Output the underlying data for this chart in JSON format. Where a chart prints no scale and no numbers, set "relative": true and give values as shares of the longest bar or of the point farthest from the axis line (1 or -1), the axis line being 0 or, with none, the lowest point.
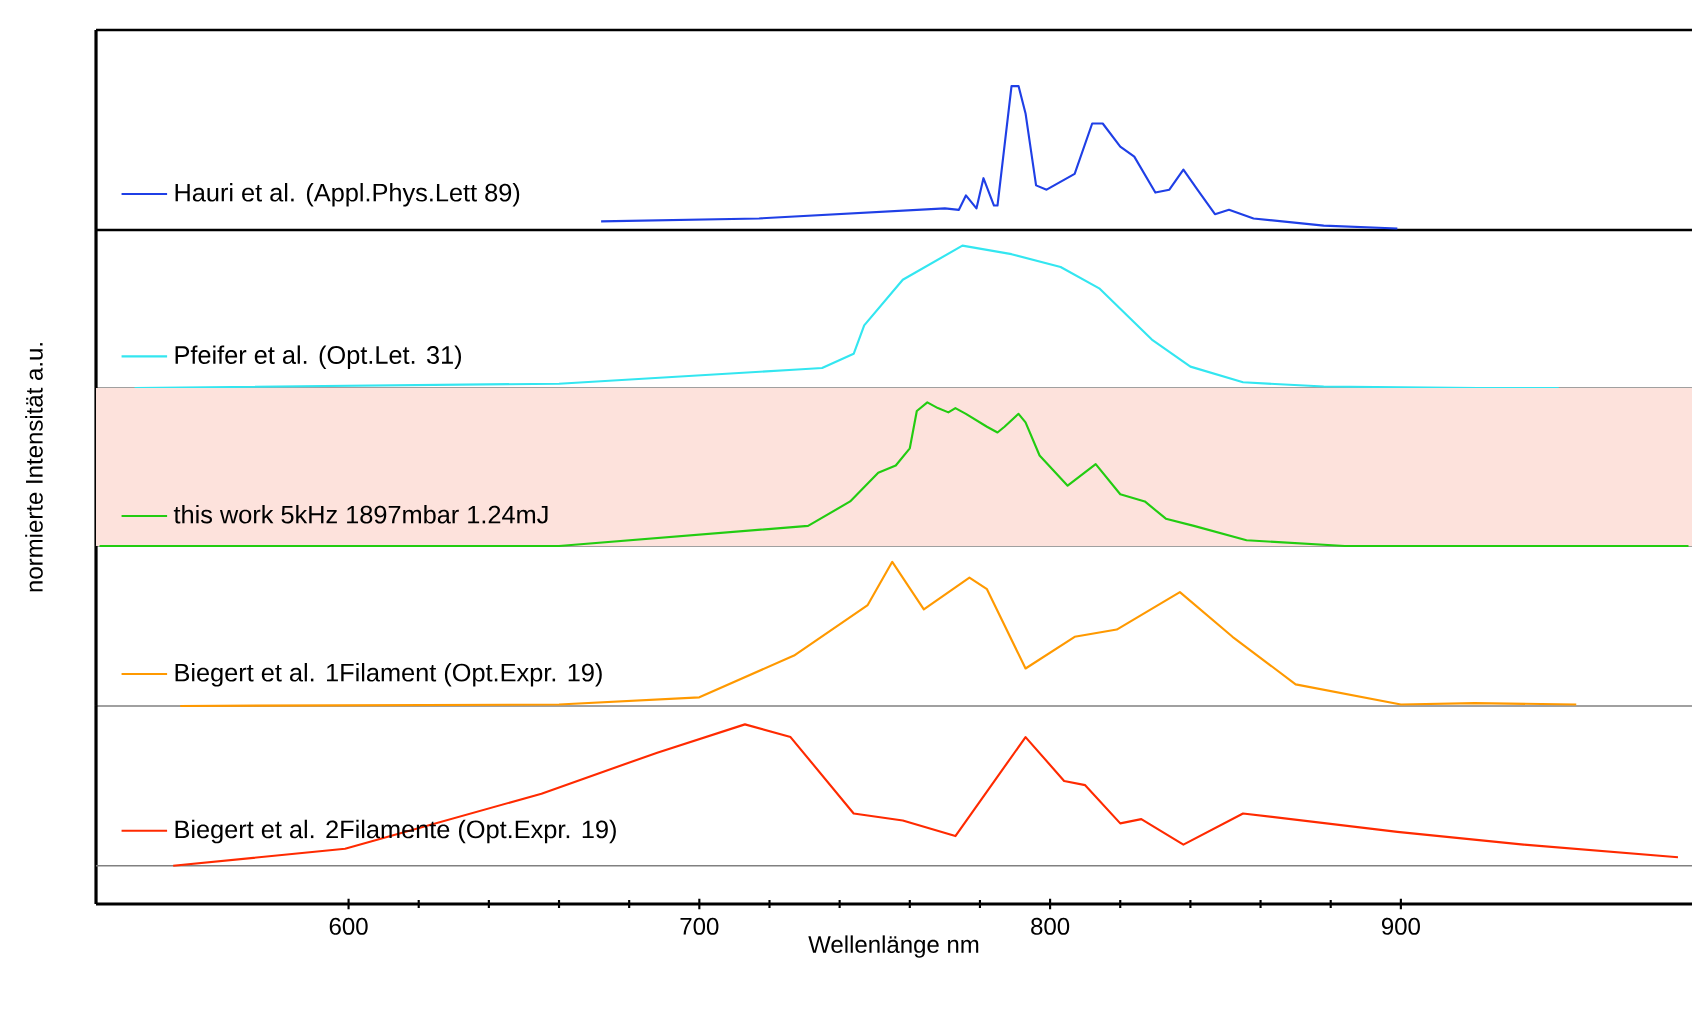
{
  "chart_data": [
    {
      "type": "line",
      "relative": true,
      "xlim": [
        528,
        983
      ],
      "tick_labels": false,
      "legend": "bottom left",
      "series": [
        {
          "name": "Hauri et al. (Appl.Phys.Lett 89)",
          "color": "#1f3fe6",
          "x": [
            672,
            717,
            770,
            774,
            776,
            779,
            781,
            784,
            785,
            789,
            791,
            793,
            796,
            799,
            807,
            812,
            815,
            820,
            824,
            830,
            834,
            838,
            842,
            847,
            851,
            858,
            878,
            899
          ],
          "values": [
            0.06,
            0.08,
            0.15,
            0.14,
            0.24,
            0.15,
            0.36,
            0.17,
            0.17,
            1.0,
            1.0,
            0.81,
            0.31,
            0.28,
            0.39,
            0.74,
            0.74,
            0.58,
            0.51,
            0.26,
            0.28,
            0.42,
            0.28,
            0.11,
            0.14,
            0.08,
            0.03,
            0.01
          ]
        }
      ]
    },
    {
      "type": "line",
      "relative": true,
      "xlim": [
        528,
        983
      ],
      "tick_labels": false,
      "legend": "bottom left",
      "series": [
        {
          "name": "Pfeifer et al. (Opt.Let. 31)",
          "color": "#33e6f0",
          "x": [
            539,
            660,
            728,
            735,
            744,
            747,
            758,
            775,
            789,
            803,
            814,
            829,
            840,
            855,
            878,
            922,
            945
          ],
          "values": [
            0,
            0.03,
            0.13,
            0.14,
            0.24,
            0.44,
            0.76,
            1.0,
            0.94,
            0.85,
            0.7,
            0.34,
            0.15,
            0.04,
            0.01,
            0,
            0
          ]
        }
      ]
    },
    {
      "type": "line",
      "relative": true,
      "xlim": [
        528,
        983
      ],
      "tick_labels": false,
      "legend": "bottom left",
      "ylabel": "normierte Intensität a.u.",
      "bands": [
        {
          "axis": "x",
          "from": 528,
          "to": 983,
          "color": "#fde2dc"
        }
      ],
      "series": [
        {
          "name": "this work 5kHz 1897mbar 1.24mJ",
          "color": "#22cc11",
          "x": [
            529,
            660,
            731,
            743,
            751,
            756,
            760,
            762,
            765,
            768,
            771,
            773,
            776,
            782,
            785,
            787,
            791,
            793,
            797,
            805,
            813,
            820,
            827,
            833,
            841,
            856,
            884,
            982
          ],
          "values": [
            0,
            0,
            0.14,
            0.31,
            0.51,
            0.56,
            0.68,
            0.94,
            1.0,
            0.96,
            0.93,
            0.96,
            0.92,
            0.83,
            0.79,
            0.83,
            0.92,
            0.86,
            0.63,
            0.42,
            0.57,
            0.36,
            0.31,
            0.19,
            0.14,
            0.04,
            0,
            0
          ]
        }
      ]
    },
    {
      "type": "line",
      "relative": true,
      "xlim": [
        528,
        983
      ],
      "tick_labels": false,
      "legend": "bottom left",
      "series": [
        {
          "name": "Biegert et al. 1Filament (Opt.Expr. 19)",
          "color": "#ff9900",
          "x": [
            552,
            660,
            700,
            727,
            748,
            755,
            764,
            777,
            782,
            793,
            807,
            819,
            837,
            852,
            870,
            900,
            921,
            950
          ],
          "values": [
            0,
            0.01,
            0.06,
            0.35,
            0.7,
            1.0,
            0.67,
            0.89,
            0.81,
            0.26,
            0.48,
            0.53,
            0.79,
            0.48,
            0.15,
            0.01,
            0.02,
            0.01
          ]
        }
      ]
    },
    {
      "type": "line",
      "relative": true,
      "xlim": [
        528,
        983
      ],
      "tick_labels": "x",
      "legend": "bottom left",
      "xlabel": "Wellenlänge nm",
      "xticks": [
        600,
        700,
        800,
        900
      ],
      "series": [
        {
          "name": "Biegert et al. 2Filamente (Opt.Expr. 19)",
          "color": "#ff2a00",
          "x": [
            550,
            599,
            655,
            688,
            713,
            726,
            744,
            758,
            773,
            793,
            804,
            810,
            820,
            826,
            838,
            855,
            899,
            935,
            979
          ],
          "values": [
            0,
            0.12,
            0.51,
            0.8,
            1.0,
            0.91,
            0.37,
            0.32,
            0.21,
            0.91,
            0.6,
            0.57,
            0.3,
            0.33,
            0.15,
            0.37,
            0.24,
            0.15,
            0.06
          ]
        }
      ]
    }
  ]
}
